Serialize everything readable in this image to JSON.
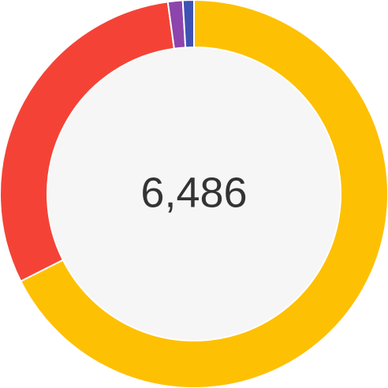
{
  "chart_data": {
    "type": "pie",
    "style": "donut",
    "center_label": "6,486",
    "total": 6486,
    "legend": "none",
    "inner_fill": "#f6f6f6",
    "slices": [
      {
        "value": 4383,
        "color": "#fec002"
      },
      {
        "value": 1963,
        "color": "#f44336"
      },
      {
        "value": 80,
        "color": "#8e44ad"
      },
      {
        "value": 60,
        "color": "#3f51b5"
      }
    ]
  }
}
